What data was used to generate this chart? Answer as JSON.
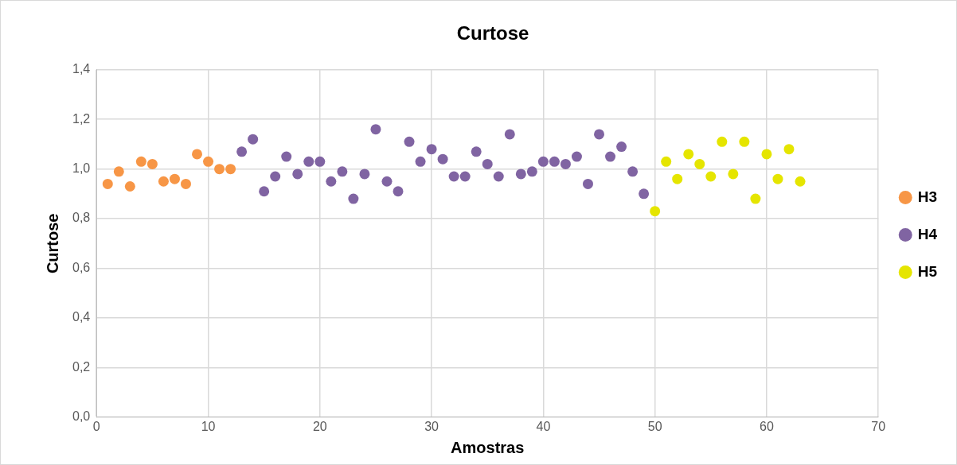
{
  "chart_data": {
    "type": "scatter",
    "title": "Curtose",
    "xlabel": "Amostras",
    "ylabel": "Curtose",
    "xlim": [
      0,
      70
    ],
    "xticks": [
      0,
      10,
      20,
      30,
      40,
      50,
      60,
      70
    ],
    "ylim": [
      0,
      1.4
    ],
    "yticks": [
      {
        "value": 0,
        "label": "0,0"
      },
      {
        "value": 0.2,
        "label": "0,2"
      },
      {
        "value": 0.4,
        "label": "0,4"
      },
      {
        "value": 0.6,
        "label": "0,6"
      },
      {
        "value": 0.8,
        "label": "0,8"
      },
      {
        "value": 1,
        "label": "1,0"
      },
      {
        "value": 1.2,
        "label": "1,2"
      },
      {
        "value": 1.4,
        "label": "1,4"
      }
    ],
    "grid": true,
    "legend": "right",
    "marker": "circle",
    "series": [
      {
        "name": "H3",
        "color": "#f79646",
        "x": [
          1,
          2,
          3,
          4,
          5,
          6,
          7,
          8,
          9,
          10,
          11,
          12
        ],
        "values": [
          0.94,
          0.99,
          0.93,
          1.03,
          1.02,
          0.95,
          0.96,
          0.94,
          1.06,
          1.03,
          1.0,
          1.0
        ]
      },
      {
        "name": "H4",
        "color": "#8064a2",
        "x": [
          13,
          14,
          15,
          16,
          17,
          18,
          19,
          20,
          21,
          22,
          23,
          24,
          25,
          26,
          27,
          28,
          29,
          30,
          31,
          32,
          33,
          34,
          35,
          36,
          37,
          38,
          39,
          40,
          41,
          42,
          43,
          44,
          45,
          46,
          47,
          48,
          49
        ],
        "values": [
          1.07,
          1.12,
          0.91,
          0.97,
          1.05,
          0.98,
          1.03,
          1.03,
          0.95,
          0.99,
          0.88,
          0.98,
          1.16,
          0.95,
          0.91,
          1.11,
          1.03,
          1.08,
          1.04,
          0.97,
          0.97,
          1.07,
          1.02,
          0.97,
          1.14,
          0.98,
          0.99,
          1.03,
          1.03,
          1.02,
          1.05,
          0.94,
          1.14,
          1.05,
          1.09,
          0.99,
          0.9
        ]
      },
      {
        "name": "H5",
        "color": "#e5e500",
        "x": [
          50,
          51,
          52,
          53,
          54,
          55,
          56,
          57,
          58,
          59,
          60,
          61,
          62,
          63
        ],
        "values": [
          0.83,
          1.03,
          0.96,
          1.06,
          1.02,
          0.97,
          1.11,
          0.98,
          1.11,
          0.88,
          1.06,
          0.96,
          1.08,
          0.95
        ]
      }
    ]
  }
}
